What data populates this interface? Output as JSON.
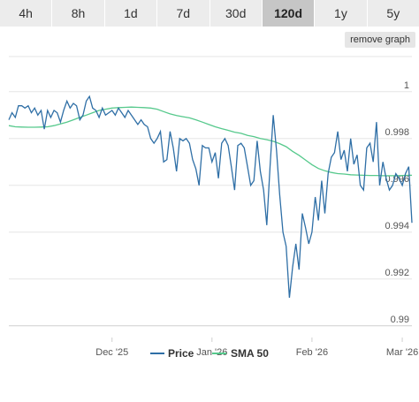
{
  "tabs": [
    {
      "label": "4h",
      "active": false
    },
    {
      "label": "8h",
      "active": false
    },
    {
      "label": "1d",
      "active": false
    },
    {
      "label": "7d",
      "active": false
    },
    {
      "label": "30d",
      "active": false
    },
    {
      "label": "120d",
      "active": true
    },
    {
      "label": "1y",
      "active": false
    },
    {
      "label": "5y",
      "active": false
    }
  ],
  "remove_graph_label": "remove graph",
  "chart_data": {
    "type": "line",
    "title": "",
    "xlabel": "",
    "ylabel": "",
    "x_ticks": [
      {
        "label": "Dec '25",
        "x": 60
      },
      {
        "label": "Jan '26",
        "x": 91
      },
      {
        "label": "Feb '26",
        "x": 122
      },
      {
        "label": "Mar '26",
        "x": 150
      }
    ],
    "xlim": [
      28,
      153
    ],
    "y_ticks": [
      1,
      0.998,
      0.996,
      0.994,
      0.992,
      0.99
    ],
    "ylim": [
      0.9895,
      1.0015
    ],
    "grid": true,
    "legend_position": "bottom-center",
    "colors": {
      "price": "#2f6fa6",
      "sma": "#56c98c"
    },
    "series": [
      {
        "name": "Price",
        "x": [
          28,
          29,
          30,
          31,
          32,
          33,
          34,
          35,
          36,
          37,
          38,
          39,
          40,
          41,
          42,
          43,
          44,
          45,
          46,
          47,
          48,
          49,
          50,
          51,
          52,
          53,
          54,
          55,
          56,
          57,
          58,
          59,
          60,
          61,
          62,
          63,
          64,
          65,
          66,
          67,
          68,
          69,
          70,
          71,
          72,
          73,
          74,
          75,
          76,
          77,
          78,
          79,
          80,
          81,
          82,
          83,
          84,
          85,
          86,
          87,
          88,
          89,
          90,
          91,
          92,
          93,
          94,
          95,
          96,
          97,
          98,
          99,
          100,
          101,
          102,
          103,
          104,
          105,
          106,
          107,
          108,
          109,
          110,
          111,
          112,
          113,
          114,
          115,
          116,
          117,
          118,
          119,
          120,
          121,
          122,
          123,
          124,
          125,
          126,
          127,
          128,
          129,
          130,
          131,
          132,
          133,
          134,
          135,
          136,
          137,
          138,
          139,
          140,
          141,
          142,
          143,
          144,
          145,
          146,
          147,
          148,
          149,
          150,
          151,
          152,
          153
        ],
        "values": [
          0.9988,
          0.9991,
          0.9989,
          0.9994,
          0.9994,
          0.9993,
          0.9994,
          0.9991,
          0.9993,
          0.999,
          0.9992,
          0.9984,
          0.9992,
          0.9989,
          0.9992,
          0.9991,
          0.9987,
          0.9992,
          0.9996,
          0.9993,
          0.9995,
          0.9994,
          0.9988,
          0.999,
          0.9996,
          0.9998,
          0.9993,
          0.9992,
          0.9989,
          0.9993,
          0.999,
          0.9991,
          0.9992,
          0.999,
          0.9993,
          0.9991,
          0.9989,
          0.9992,
          0.999,
          0.9988,
          0.9986,
          0.9988,
          0.9986,
          0.9985,
          0.998,
          0.9978,
          0.998,
          0.9983,
          0.997,
          0.9971,
          0.9983,
          0.9976,
          0.9966,
          0.998,
          0.9979,
          0.998,
          0.9978,
          0.9971,
          0.9967,
          0.996,
          0.9977,
          0.9976,
          0.9976,
          0.997,
          0.9974,
          0.9963,
          0.9978,
          0.998,
          0.9977,
          0.9968,
          0.9958,
          0.9977,
          0.9978,
          0.9976,
          0.9968,
          0.996,
          0.9962,
          0.9979,
          0.9966,
          0.9958,
          0.9943,
          0.9968,
          0.999,
          0.9975,
          0.9956,
          0.994,
          0.9934,
          0.9912,
          0.9925,
          0.9935,
          0.9924,
          0.9948,
          0.9942,
          0.9935,
          0.994,
          0.9955,
          0.9945,
          0.9962,
          0.9948,
          0.9965,
          0.9972,
          0.9974,
          0.9983,
          0.9971,
          0.9975,
          0.9966,
          0.998,
          0.9969,
          0.9973,
          0.996,
          0.9958,
          0.9976,
          0.9978,
          0.997,
          0.9987,
          0.996,
          0.997,
          0.9963,
          0.9958,
          0.996,
          0.9965,
          0.9963,
          0.996,
          0.9965,
          0.9968,
          0.9944
        ]
      },
      {
        "name": "SMA 50",
        "x": [
          28,
          30,
          32,
          34,
          36,
          38,
          40,
          42,
          44,
          46,
          48,
          50,
          52,
          54,
          56,
          58,
          60,
          62,
          64,
          66,
          68,
          70,
          72,
          74,
          76,
          78,
          80,
          82,
          84,
          86,
          88,
          90,
          92,
          94,
          96,
          98,
          100,
          102,
          104,
          106,
          108,
          110,
          112,
          114,
          116,
          118,
          120,
          122,
          124,
          126,
          128,
          130,
          132,
          134,
          136,
          138,
          140,
          142,
          144,
          146,
          148,
          150,
          152,
          153
        ],
        "values": [
          0.99855,
          0.9985,
          0.99849,
          0.99848,
          0.99848,
          0.99849,
          0.9985,
          0.99855,
          0.99862,
          0.9987,
          0.9988,
          0.9989,
          0.999,
          0.9991,
          0.9992,
          0.99925,
          0.9993,
          0.99932,
          0.99933,
          0.99934,
          0.99933,
          0.99932,
          0.9993,
          0.99925,
          0.99915,
          0.99905,
          0.99898,
          0.99893,
          0.99888,
          0.9988,
          0.9987,
          0.9986,
          0.9985,
          0.99842,
          0.99835,
          0.99827,
          0.99822,
          0.99813,
          0.99808,
          0.998,
          0.99795,
          0.99788,
          0.99778,
          0.99765,
          0.99745,
          0.99728,
          0.99708,
          0.99688,
          0.99672,
          0.99662,
          0.99655,
          0.9965,
          0.99648,
          0.99645,
          0.99644,
          0.99643,
          0.99642,
          0.99642,
          0.99641,
          0.99641,
          0.99641,
          0.99642,
          0.99643,
          0.99643
        ]
      }
    ]
  }
}
